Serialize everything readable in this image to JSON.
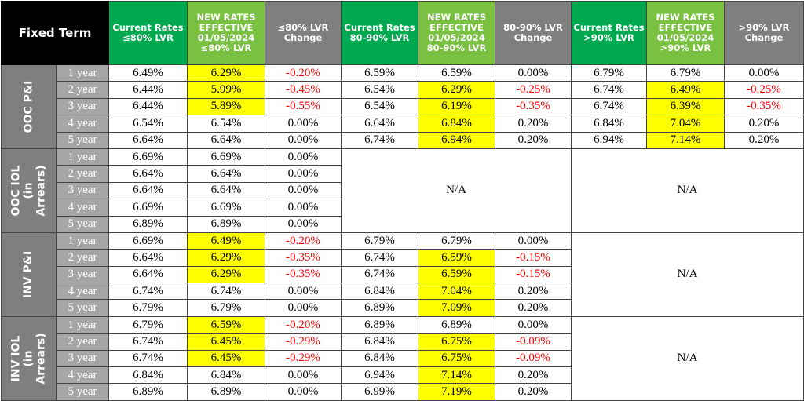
{
  "table": {
    "corner_label": "Fixed Term",
    "headers": [
      "Current Rates\n≤80% LVR",
      "NEW RATES\nEFFECTIVE\n01/05/2024\n≤80% LVR",
      "≤80% LVR\nChange",
      "Current Rates\n80-90% LVR",
      "NEW RATES\nEFFECTIVE\n01/05/2024\n80-90% LVR",
      "80-90% LVR\nChange",
      "Current Rates\n>90% LVR",
      "NEW RATES\nEFFECTIVE\n01/05/2024\n>90% LVR",
      ">90% LVR\nChange"
    ],
    "na_text": "N/A",
    "groups": [
      {
        "label": "OOC P&I",
        "rows": [
          {
            "term": "1 year",
            "c80": "6.49%",
            "n80": "6.29%",
            "ch80": "-0.20%",
            "c90": "6.59%",
            "n90": "6.59%",
            "ch90": "0.00%",
            "c90p": "6.79%",
            "n90p": "6.79%",
            "ch90p": "0.00%"
          },
          {
            "term": "2 year",
            "c80": "6.44%",
            "n80": "5.99%",
            "ch80": "-0.45%",
            "c90": "6.54%",
            "n90": "6.29%",
            "ch90": "-0.25%",
            "c90p": "6.74%",
            "n90p": "6.49%",
            "ch90p": "-0.25%"
          },
          {
            "term": "3 year",
            "c80": "6.44%",
            "n80": "5.89%",
            "ch80": "-0.55%",
            "c90": "6.54%",
            "n90": "6.19%",
            "ch90": "-0.35%",
            "c90p": "6.74%",
            "n90p": "6.39%",
            "ch90p": "-0.35%"
          },
          {
            "term": "4 year",
            "c80": "6.54%",
            "n80": "6.54%",
            "ch80": "0.00%",
            "c90": "6.64%",
            "n90": "6.84%",
            "ch90": "0.20%",
            "c90p": "6.84%",
            "n90p": "7.04%",
            "ch90p": "0.20%"
          },
          {
            "term": "5 year",
            "c80": "6.64%",
            "n80": "6.64%",
            "ch80": "0.00%",
            "c90": "6.74%",
            "n90": "6.94%",
            "ch90": "0.20%",
            "c90p": "6.94%",
            "n90p": "7.14%",
            "ch90p": "0.20%"
          }
        ]
      },
      {
        "label": "OOC IOL (in\nArrears)",
        "rows": [
          {
            "term": "1 year",
            "c80": "6.69%",
            "n80": "6.69%",
            "ch80": "0.00%"
          },
          {
            "term": "2 year",
            "c80": "6.64%",
            "n80": "6.64%",
            "ch80": "0.00%"
          },
          {
            "term": "3 year",
            "c80": "6.64%",
            "n80": "6.64%",
            "ch80": "0.00%"
          },
          {
            "term": "4 year",
            "c80": "6.69%",
            "n80": "6.69%",
            "ch80": "0.00%"
          },
          {
            "term": "5 year",
            "c80": "6.89%",
            "n80": "6.89%",
            "ch80": "0.00%"
          }
        ]
      },
      {
        "label": "INV P&I",
        "rows": [
          {
            "term": "1 year",
            "c80": "6.69%",
            "n80": "6.49%",
            "ch80": "-0.20%",
            "c90": "6.79%",
            "n90": "6.79%",
            "ch90": "0.00%"
          },
          {
            "term": "2 year",
            "c80": "6.64%",
            "n80": "6.29%",
            "ch80": "-0.35%",
            "c90": "6.74%",
            "n90": "6.59%",
            "ch90": "-0.15%"
          },
          {
            "term": "3 year",
            "c80": "6.64%",
            "n80": "6.29%",
            "ch80": "-0.35%",
            "c90": "6.74%",
            "n90": "6.59%",
            "ch90": "-0.15%"
          },
          {
            "term": "4 year",
            "c80": "6.74%",
            "n80": "6.74%",
            "ch80": "0.00%",
            "c90": "6.84%",
            "n90": "7.04%",
            "ch90": "0.20%"
          },
          {
            "term": "5 year",
            "c80": "6.79%",
            "n80": "6.79%",
            "ch80": "0.00%",
            "c90": "6.89%",
            "n90": "7.09%",
            "ch90": "0.20%"
          }
        ]
      },
      {
        "label": "INV IOL (in\nArrears)",
        "rows": [
          {
            "term": "1 year",
            "c80": "6.79%",
            "n80": "6.59%",
            "ch80": "-0.20%",
            "c90": "6.89%",
            "n90": "6.89%",
            "ch90": "0.00%"
          },
          {
            "term": "2 year",
            "c80": "6.74%",
            "n80": "6.45%",
            "ch80": "-0.29%",
            "c90": "6.84%",
            "n90": "6.75%",
            "ch90": "-0.09%"
          },
          {
            "term": "3 year",
            "c80": "6.74%",
            "n80": "6.45%",
            "ch80": "-0.29%",
            "c90": "6.84%",
            "n90": "6.75%",
            "ch90": "-0.09%"
          },
          {
            "term": "4 year",
            "c80": "6.84%",
            "n80": "6.84%",
            "ch80": "0.00%",
            "c90": "6.94%",
            "n90": "7.14%",
            "ch90": "0.20%"
          },
          {
            "term": "5 year",
            "c80": "6.89%",
            "n80": "6.89%",
            "ch80": "0.00%",
            "c90": "6.99%",
            "n90": "7.19%",
            "ch90": "0.20%"
          }
        ]
      }
    ],
    "colors": {
      "highlight": "#ffff00",
      "negative": "#ff0000",
      "header_current": "#00a94f",
      "header_new": "#7ac142",
      "header_change": "#7f7f7f"
    }
  }
}
